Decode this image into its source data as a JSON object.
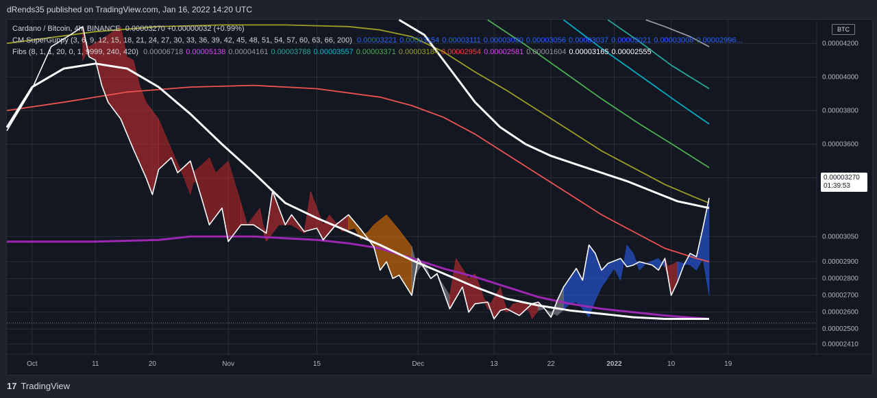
{
  "header": {
    "publisher_text": "dRends35 published on TradingView.com, Jan 16, 2022 14:20 UTC"
  },
  "legend": {
    "line1": {
      "label": "Cardano / Bitcoin, 4h, BINANCE",
      "values": "0.00003270  +0.00000032 (+0.99%)"
    },
    "line2": {
      "label": "CM SuperGuppy (3, 6, 9, 12, 15, 18, 21, 24, 27, 30, 33, 36, 39, 42, 45, 48, 51, 54, 57, 60, 63, 66, 200)",
      "values": [
        {
          "v": "0.00003221",
          "color": "#2962ff"
        },
        {
          "v": "0.00003154",
          "color": "#2962ff"
        },
        {
          "v": "0.00003111",
          "color": "#2962ff"
        },
        {
          "v": "0.00003080",
          "color": "#2962ff"
        },
        {
          "v": "0.00003056",
          "color": "#2962ff"
        },
        {
          "v": "0.00003037",
          "color": "#2962ff"
        },
        {
          "v": "0.00003021",
          "color": "#2962ff"
        },
        {
          "v": "0.00003008",
          "color": "#2962ff"
        },
        {
          "v": "0.00002996...",
          "color": "#2962ff"
        }
      ]
    },
    "line3": {
      "label": "Fibs (8, 1, 1, 20, 0, 1, 9999, 240, 420)",
      "values": [
        {
          "v": "0.00006718",
          "color": "#9598a1"
        },
        {
          "v": "0.00005138",
          "color": "#e040fb"
        },
        {
          "v": "0.00004161",
          "color": "#9598a1"
        },
        {
          "v": "0.00003788",
          "color": "#26a69a"
        },
        {
          "v": "0.00003557",
          "color": "#00bcd4"
        },
        {
          "v": "0.00003371",
          "color": "#4caf50"
        },
        {
          "v": "0.00003184",
          "color": "#9e9d24"
        },
        {
          "v": "0.00002954",
          "color": "#f44336"
        },
        {
          "v": "0.00002581",
          "color": "#e040fb"
        },
        {
          "v": "0.00001604",
          "color": "#9598a1"
        },
        {
          "v": "0.00003165",
          "color": "#ffffff"
        },
        {
          "v": "0.00002555",
          "color": "#ffffff"
        }
      ]
    }
  },
  "badges": {
    "currency": "BTC",
    "last_price": "0.00003270",
    "countdown": "01:39:53"
  },
  "footer": {
    "brand": "TradingView",
    "logo_glyph": "17"
  },
  "colors": {
    "background": "#131722",
    "grid": "#2a2e39",
    "price": "#ffffff",
    "ema200": "#ef5350",
    "purple": "#9c27b0",
    "olive": "#9e9d24",
    "green": "#4caf50",
    "teal": "#00acc1",
    "tealDark": "#26a69a",
    "guppy_red": "#d32f2f",
    "guppy_blue": "#2962ff",
    "guppy_orange": "#f57c00",
    "guppy_gray": "#9598a1"
  },
  "chart_data": {
    "type": "line",
    "title": "Cardano / Bitcoin, 4h, BINANCE",
    "ylim": [
      2.35e-05,
      4.34e-05
    ],
    "y_ticks": [
      "0.00004200",
      "0.00004000",
      "0.00003800",
      "0.00003600",
      "0.00003400",
      "0.00003050",
      "0.00002900",
      "0.00002800",
      "0.00002700",
      "0.00002600",
      "0.00002500",
      "0.00002410"
    ],
    "y_tick_values": [
      4.2e-05,
      4e-05,
      3.8e-05,
      3.6e-05,
      3.4e-05,
      3.05e-05,
      2.9e-05,
      2.8e-05,
      2.7e-05,
      2.6e-05,
      2.5e-05,
      2.41e-05
    ],
    "x_ticks": [
      "Oct",
      "11",
      "20",
      "Nov",
      "15",
      "Dec",
      "13",
      "22",
      "2022",
      "10",
      "19"
    ],
    "x_tick_days": [
      0,
      10,
      19,
      31,
      45,
      61,
      73,
      82,
      92,
      101,
      110
    ],
    "x_range_days": [
      -4,
      124
    ],
    "grid": true,
    "series": [
      {
        "name": "ADA/BTC",
        "color": "#ffffff",
        "x": [
          -4,
          0,
          3,
          6,
          8,
          9,
          10,
          11,
          12,
          14,
          16,
          18,
          19,
          20,
          22,
          23,
          25,
          27,
          28,
          30,
          31,
          33,
          35,
          37,
          38,
          40,
          41,
          43,
          45,
          46,
          48,
          50,
          52,
          54,
          55,
          56,
          57,
          58,
          60,
          61,
          63,
          64,
          66,
          68,
          69,
          70,
          72,
          73,
          74,
          75,
          76,
          77,
          79,
          80,
          81,
          82,
          83,
          84,
          86,
          87,
          88,
          89,
          90,
          91,
          93,
          94,
          95,
          96,
          98,
          99,
          100,
          101,
          102,
          103,
          104,
          105,
          106,
          107
        ],
        "y": [
          3.68e-05,
          3.93e-05,
          4.18e-05,
          4.25e-05,
          4.3e-05,
          4.12e-05,
          4.1e-05,
          3.95e-05,
          3.85e-05,
          3.75e-05,
          3.57e-05,
          3.4e-05,
          3.3e-05,
          3.45e-05,
          3.52e-05,
          3.43e-05,
          3.5e-05,
          3.25e-05,
          3.12e-05,
          3.22e-05,
          3.02e-05,
          3.12e-05,
          3.12e-05,
          3.07e-05,
          3.32e-05,
          3.12e-05,
          3.18e-05,
          3.08e-05,
          3.1e-05,
          3.03e-05,
          3.12e-05,
          3.18e-05,
          3.09e-05,
          2.99e-05,
          2.85e-05,
          2.9e-05,
          2.8e-05,
          2.82e-05,
          2.7e-05,
          2.92e-05,
          2.8e-05,
          2.83e-05,
          2.62e-05,
          2.75e-05,
          2.6e-05,
          2.65e-05,
          2.66e-05,
          2.56e-05,
          2.61e-05,
          2.62e-05,
          2.6e-05,
          2.58e-05,
          2.65e-05,
          2.66e-05,
          2.62e-05,
          2.57e-05,
          2.67e-05,
          2.75e-05,
          2.86e-05,
          2.79e-05,
          3e-05,
          2.95e-05,
          2.85e-05,
          2.89e-05,
          2.92e-05,
          2.87e-05,
          2.88e-05,
          2.9e-05,
          2.88e-05,
          2.85e-05,
          2.92e-05,
          2.7e-05,
          2.78e-05,
          2.88e-05,
          2.95e-05,
          2.93e-05,
          3.1e-05,
          3.28e-05
        ]
      },
      {
        "name": "200",
        "color": "#ffffff",
        "x": [
          -4,
          0,
          5,
          10,
          15,
          20,
          25,
          30,
          35,
          40,
          45,
          50,
          55,
          60,
          65,
          70,
          75,
          80,
          85,
          90,
          95,
          100,
          105,
          107
        ],
        "y": [
          3.7e-05,
          3.94e-05,
          4.05e-05,
          4.08e-05,
          4.05e-05,
          3.94e-05,
          3.78e-05,
          3.6e-05,
          3.43e-05,
          3.25e-05,
          3.16e-05,
          3.08e-05,
          3e-05,
          2.91e-05,
          2.83e-05,
          2.75e-05,
          2.68e-05,
          2.64e-05,
          2.61e-05,
          2.59e-05,
          2.57e-05,
          2.56e-05,
          2.56e-05,
          2.56e-05
        ]
      },
      {
        "color": "#ffffff",
        "x": [
          58,
          62,
          66,
          70,
          74,
          78,
          82,
          86,
          90,
          94,
          98,
          102,
          107
        ],
        "y": [
          4.34e-05,
          4.25e-05,
          4.05e-05,
          3.85e-05,
          3.7e-05,
          3.6e-05,
          3.53e-05,
          3.48e-05,
          3.43e-05,
          3.38e-05,
          3.32e-05,
          3.26e-05,
          3.22e-05
        ]
      },
      {
        "color": "#ef5350",
        "x": [
          -4,
          5,
          15,
          25,
          35,
          45,
          55,
          60,
          65,
          70,
          75,
          80,
          85,
          90,
          95,
          100,
          105,
          107
        ],
        "y": [
          3.8e-05,
          3.85e-05,
          3.91e-05,
          3.94e-05,
          3.95e-05,
          3.93e-05,
          3.88e-05,
          3.83e-05,
          3.76e-05,
          3.66e-05,
          3.54e-05,
          3.42e-05,
          3.3e-05,
          3.18e-05,
          3.08e-05,
          2.98e-05,
          2.92e-05,
          2.9e-05
        ]
      },
      {
        "color": "#9c27b0",
        "x": [
          -4,
          10,
          20,
          25,
          35,
          45,
          50,
          55,
          60,
          65,
          70,
          75,
          80,
          85,
          90,
          95,
          100,
          107
        ],
        "y": [
          3.02e-05,
          3.02e-05,
          3.03e-05,
          3.05e-05,
          3.05e-05,
          3.03e-05,
          3.01e-05,
          2.98e-05,
          2.92e-05,
          2.86e-05,
          2.81e-05,
          2.75e-05,
          2.69e-05,
          2.65e-05,
          2.62e-05,
          2.6e-05,
          2.58e-05,
          2.56e-05
        ]
      },
      {
        "color": "#9e9d24",
        "x": [
          -4,
          10,
          20,
          30,
          40,
          50,
          55,
          60,
          65,
          70,
          75,
          80,
          85,
          90,
          95,
          100,
          105,
          107
        ],
        "y": [
          4.2e-05,
          4.27e-05,
          4.3e-05,
          4.31e-05,
          4.31e-05,
          4.3e-05,
          4.28e-05,
          4.24e-05,
          4.15e-05,
          4.03e-05,
          3.92e-05,
          3.8e-05,
          3.68e-05,
          3.56e-05,
          3.46e-05,
          3.36e-05,
          3.28e-05,
          3.25e-05
        ]
      },
      {
        "color": "#4caf50",
        "x": [
          72,
          78,
          84,
          90,
          96,
          102,
          107
        ],
        "y": [
          4.34e-05,
          4.19e-05,
          4.03e-05,
          3.87e-05,
          3.72e-05,
          3.58e-05,
          3.46e-05
        ]
      },
      {
        "color": "#00acc1",
        "x": [
          84,
          90,
          96,
          102,
          107
        ],
        "y": [
          4.34e-05,
          4.17e-05,
          4.01e-05,
          3.85e-05,
          3.72e-05
        ]
      },
      {
        "color": "#26a69a",
        "x": [
          91,
          96,
          101,
          107
        ],
        "y": [
          4.34e-05,
          4.21e-05,
          4.07e-05,
          3.93e-05
        ]
      },
      {
        "color": "#9598a1",
        "x": [
          97,
          100,
          104,
          107
        ],
        "y": [
          4.34e-05,
          4.3e-05,
          4.24e-05,
          4.18e-05
        ]
      }
    ],
    "ribbons": [
      {
        "x0": 8,
        "x1": 20,
        "color": "#d32f2f"
      },
      {
        "x0": 20,
        "x1": 33,
        "color": "#c62828"
      },
      {
        "x0": 33,
        "x1": 50,
        "color": "#d32f2f"
      },
      {
        "x0": 50,
        "x1": 60,
        "color": "#f57c00"
      },
      {
        "x0": 60,
        "x1": 66,
        "color": "#9598a1"
      },
      {
        "x0": 66,
        "x1": 80,
        "color": "#d32f2f"
      },
      {
        "x0": 80,
        "x1": 84,
        "color": "#9598a1"
      },
      {
        "x0": 84,
        "x1": 100,
        "color": "#2962ff"
      },
      {
        "x0": 100,
        "x1": 102,
        "color": "#d32f2f"
      },
      {
        "x0": 102,
        "x1": 107,
        "color": "#2962ff"
      }
    ]
  }
}
